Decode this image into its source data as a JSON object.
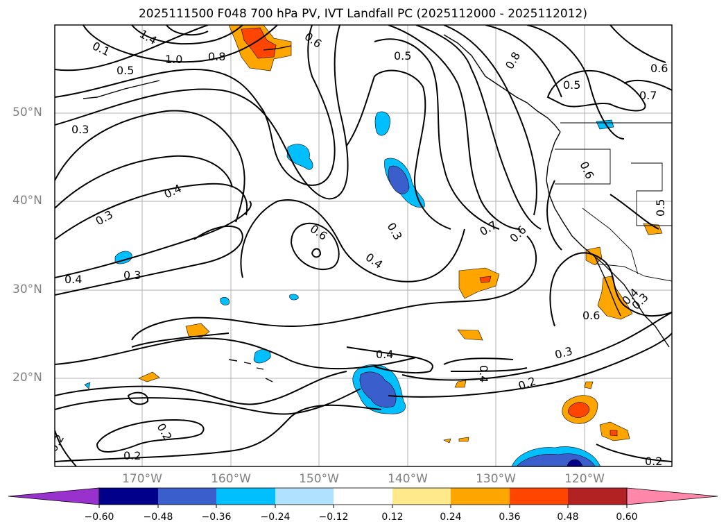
{
  "title": "2025111500 F048 700 hPa PV, IVT Landfall PC (2025112000 - 2025112012)",
  "map": {
    "lat_labels": [
      "50°N",
      "40°N",
      "30°N",
      "20°N"
    ],
    "lon_labels": [
      "170°W",
      "160°W",
      "150°W",
      "140°W",
      "130°W",
      "120°W"
    ],
    "contour_labels": [
      "0.1",
      "1.4",
      "1.0",
      "0.8",
      "0.6",
      "0.5",
      "0.5",
      "0.8",
      "0.6",
      "0.7",
      "0.5",
      "0.4",
      "0.3",
      "0.4",
      "0.3",
      "0.3",
      "0.4",
      "0.6",
      "0.3",
      "0.4",
      "0.7",
      "0.6",
      "0.6",
      "0.5",
      "0.6",
      "0.3",
      "0.4",
      "0.4",
      "0.3",
      "0.2",
      "0.2",
      "0.2",
      "0.2",
      "0.2"
    ]
  },
  "colorbar": {
    "ticks": [
      "−0.60",
      "−0.48",
      "−0.36",
      "−0.24",
      "−0.12",
      "0.12",
      "0.24",
      "0.36",
      "0.48",
      "0.60"
    ],
    "colors": [
      "#9932cc",
      "#00008b",
      "#3a5fcd",
      "#00bfff",
      "#b0e2ff",
      "#ffffff",
      "#ffe98a",
      "#ffa500",
      "#ff4500",
      "#b22222",
      "#ff88aa"
    ]
  }
}
